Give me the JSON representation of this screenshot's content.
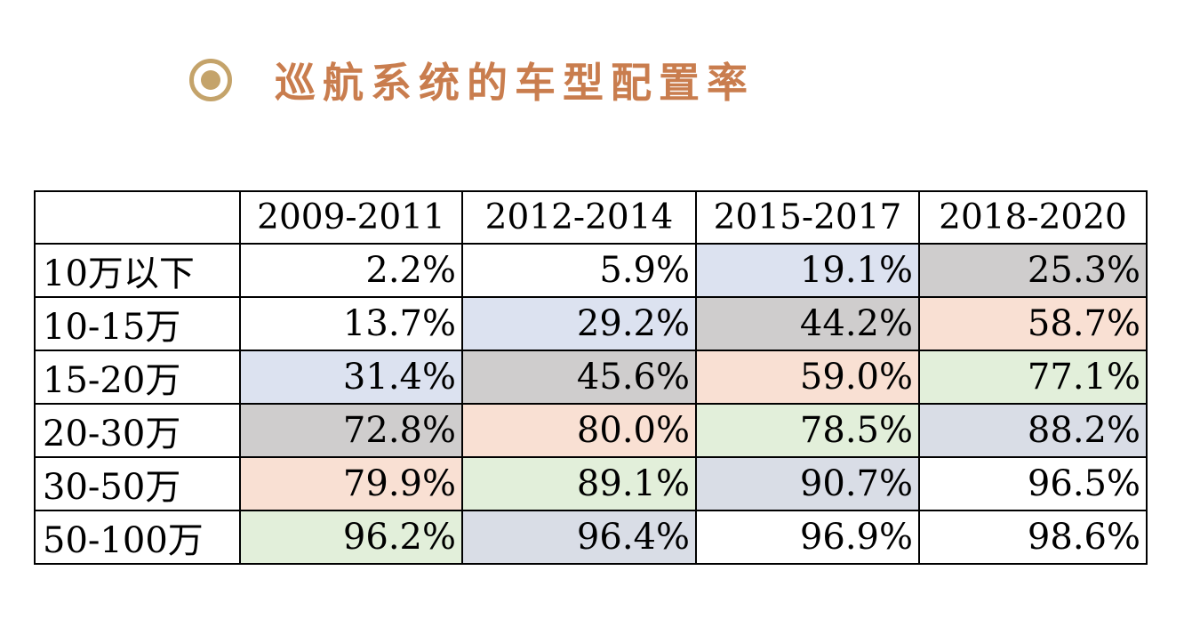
{
  "title": "巡航系统的车型配置率",
  "table": {
    "corner": "",
    "columns": [
      "2009-2011",
      "2012-2014",
      "2015-2017",
      "2018-2020"
    ],
    "rows": [
      {
        "label": "10万以下",
        "values": [
          "2.2%",
          "5.9%",
          "19.1%",
          "25.3%"
        ],
        "fills": [
          "#FFFFFF",
          "#FFFFFF",
          "#DCE2F0",
          "#CFCDCD"
        ]
      },
      {
        "label": "10-15万",
        "values": [
          "13.7%",
          "29.2%",
          "44.2%",
          "58.7%"
        ],
        "fills": [
          "#FFFFFF",
          "#DCE2F0",
          "#CFCDCD",
          "#F9E0D3"
        ]
      },
      {
        "label": "15-20万",
        "values": [
          "31.4%",
          "45.6%",
          "59.0%",
          "77.1%"
        ],
        "fills": [
          "#DCE2F0",
          "#CFCDCD",
          "#F9E0D3",
          "#E2EFDA"
        ]
      },
      {
        "label": "20-30万",
        "values": [
          "72.8%",
          "80.0%",
          "78.5%",
          "88.2%"
        ],
        "fills": [
          "#CFCDCD",
          "#F9E0D3",
          "#E2EFDA",
          "#D9DDE6"
        ]
      },
      {
        "label": "30-50万",
        "values": [
          "79.9%",
          "89.1%",
          "90.7%",
          "96.5%"
        ],
        "fills": [
          "#F9E0D3",
          "#E2EFDA",
          "#D9DDE6",
          "#FFFFFF"
        ]
      },
      {
        "label": "50-100万",
        "values": [
          "96.2%",
          "96.4%",
          "96.9%",
          "98.6%"
        ],
        "fills": [
          "#E2EFDA",
          "#D9DDE6",
          "#FFFFFF",
          "#FFFFFF"
        ]
      }
    ]
  },
  "colors": {
    "title": "#C97D4E",
    "bullet": "#C4A36A",
    "border": "#000000"
  },
  "icons": {
    "bullet": "radio-bullet-icon"
  }
}
